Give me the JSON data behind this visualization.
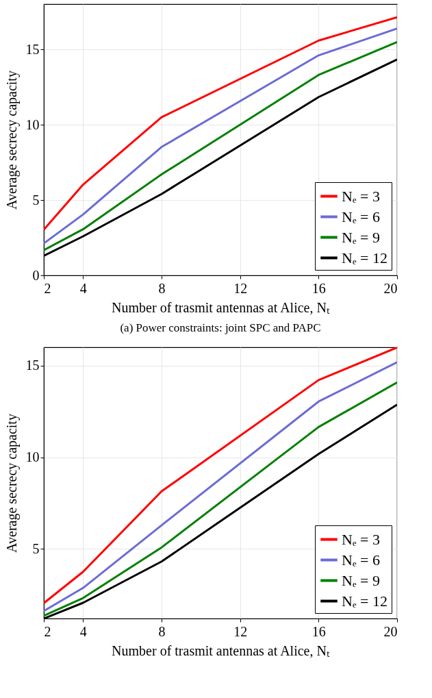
{
  "chart_data": [
    {
      "type": "line",
      "xlabel": "Number of trasmit antennas at Alice, Nₜ",
      "ylabel": "Average secrecy capacity",
      "annotations": [
        "(a) Power constraints: joint SPC and PAPC"
      ],
      "x": [
        2,
        4,
        8,
        16,
        20
      ],
      "xlim": [
        2,
        20
      ],
      "xticks": [
        2,
        4,
        8,
        12,
        16,
        20
      ],
      "ylim": [
        0,
        18
      ],
      "yticks": [
        0,
        5,
        10,
        15
      ],
      "grid": true,
      "legend": "bottom right",
      "line_style": "solid",
      "series": [
        {
          "name": "Nₑ = 3",
          "color": "#ff0000",
          "values": [
            3.03,
            6.02,
            10.49,
            15.58,
            17.13
          ]
        },
        {
          "name": "Nₑ = 6",
          "color": "#6b6bd6",
          "values": [
            2.12,
            4.04,
            8.52,
            14.6,
            16.38
          ]
        },
        {
          "name": "Nₑ = 9",
          "color": "#008000",
          "values": [
            1.67,
            3.06,
            6.7,
            13.3,
            15.48
          ]
        },
        {
          "name": "Nₑ = 12",
          "color": "#000000",
          "values": [
            1.3,
            2.59,
            5.4,
            11.83,
            14.33
          ]
        }
      ]
    },
    {
      "type": "line",
      "xlabel": "Number of trasmit antennas at Alice, Nₜ",
      "ylabel": "Average secrecy capacity",
      "x": [
        2,
        4,
        8,
        16,
        20
      ],
      "xlim": [
        2,
        20
      ],
      "xticks": [
        2,
        4,
        8,
        12,
        16,
        20
      ],
      "ylim": [
        1.2,
        16
      ],
      "yticks": [
        5,
        10,
        15
      ],
      "grid": true,
      "legend": "bottom right",
      "line_style": "solid",
      "series": [
        {
          "name": "Nₑ = 3",
          "color": "#ff0000",
          "values": [
            2.04,
            3.75,
            8.14,
            14.21,
            15.99
          ]
        },
        {
          "name": "Nₑ = 6",
          "color": "#6b6bd6",
          "values": [
            1.61,
            2.87,
            6.29,
            13.04,
            15.18
          ]
        },
        {
          "name": "Nₑ = 9",
          "color": "#008000",
          "values": [
            1.35,
            2.32,
            5.08,
            11.65,
            14.08
          ]
        },
        {
          "name": "Nₑ = 12",
          "color": "#000000",
          "values": [
            1.2,
            2.06,
            4.31,
            10.18,
            12.87
          ]
        }
      ]
    }
  ]
}
